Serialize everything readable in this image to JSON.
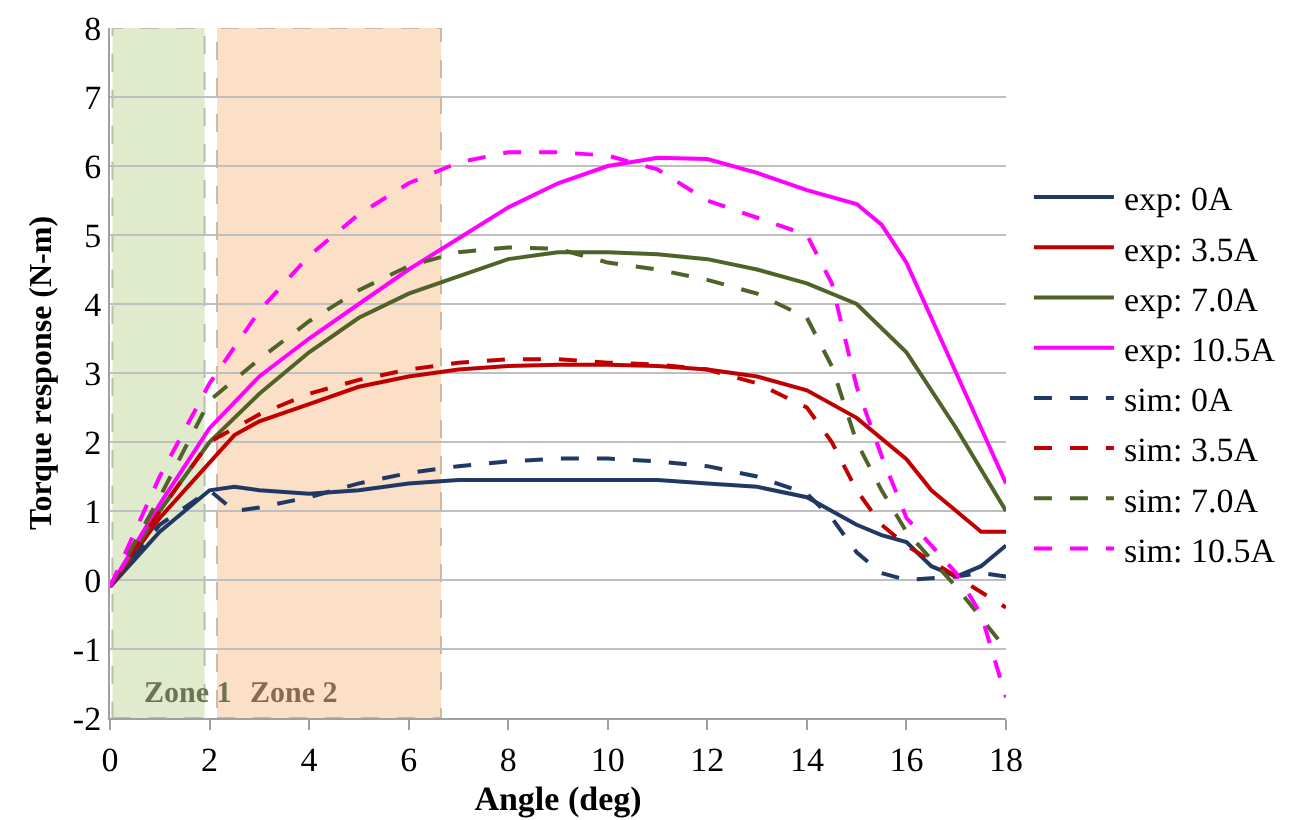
{
  "chart_data": {
    "type": "line",
    "xlabel": "Angle (deg)",
    "ylabel": "Torque response (N-m)",
    "xlim": [
      0,
      18
    ],
    "xticks": [
      0,
      2,
      4,
      6,
      8,
      10,
      12,
      14,
      16,
      18
    ],
    "ylim": [
      -2,
      8
    ],
    "yticks": [
      -2,
      -1,
      0,
      1,
      2,
      3,
      4,
      5,
      6,
      7,
      8
    ],
    "grid": "y",
    "legend": "right",
    "marker": "none",
    "bands": [
      {
        "axis": "x",
        "from": 0.05,
        "to": 1.9,
        "label": "Zone 1",
        "color": "#c3d69b"
      },
      {
        "axis": "x",
        "from": 2.15,
        "to": 6.65,
        "label": "Zone 2",
        "color": "#fac090"
      }
    ],
    "series": [
      {
        "name": "exp: 0A",
        "color": "#1f3864",
        "line_style": "solid",
        "x": [
          0,
          0.5,
          1,
          1.5,
          2,
          2.5,
          3,
          4,
          5,
          6,
          7,
          8,
          9,
          10,
          11,
          12,
          13,
          14,
          14.5,
          15,
          15.5,
          16,
          16.5,
          17,
          17.5,
          18
        ],
        "values": [
          -0.1,
          0.3,
          0.7,
          1.0,
          1.3,
          1.35,
          1.3,
          1.25,
          1.3,
          1.4,
          1.45,
          1.45,
          1.45,
          1.45,
          1.45,
          1.4,
          1.35,
          1.2,
          1.0,
          0.8,
          0.65,
          0.55,
          0.2,
          0.05,
          0.2,
          0.5
        ]
      },
      {
        "name": "exp: 3.5A",
        "color": "#c00000",
        "line_style": "solid",
        "x": [
          0,
          1,
          2,
          2.5,
          3,
          4,
          5,
          6,
          7,
          8,
          9,
          10,
          11,
          12,
          13,
          14,
          15,
          16,
          16.5,
          17,
          17.5,
          18
        ],
        "values": [
          -0.1,
          0.9,
          1.7,
          2.1,
          2.3,
          2.55,
          2.8,
          2.95,
          3.05,
          3.1,
          3.12,
          3.12,
          3.1,
          3.05,
          2.95,
          2.75,
          2.35,
          1.75,
          1.3,
          1.0,
          0.7,
          0.7
        ]
      },
      {
        "name": "exp: 7.0A",
        "color": "#4f6228",
        "line_style": "solid",
        "x": [
          0,
          1,
          2,
          3,
          4,
          5,
          6,
          7,
          8,
          9,
          10,
          11,
          12,
          13,
          14,
          15,
          16,
          17,
          18
        ],
        "values": [
          -0.1,
          1.0,
          2.0,
          2.7,
          3.3,
          3.8,
          4.15,
          4.4,
          4.65,
          4.75,
          4.75,
          4.72,
          4.65,
          4.5,
          4.3,
          4.0,
          3.3,
          2.2,
          1.0
        ]
      },
      {
        "name": "exp: 10.5A",
        "color": "#ff00ff",
        "line_style": "solid",
        "x": [
          0,
          1,
          2,
          3,
          4,
          5,
          6,
          7,
          8,
          9,
          10,
          11,
          12,
          13,
          14,
          15,
          15.5,
          16,
          17,
          18
        ],
        "values": [
          -0.1,
          1.1,
          2.2,
          2.95,
          3.5,
          4.0,
          4.5,
          4.95,
          5.4,
          5.75,
          6.0,
          6.12,
          6.1,
          5.9,
          5.65,
          5.45,
          5.15,
          4.6,
          3.0,
          1.4
        ]
      },
      {
        "name": "sim: 0A",
        "color": "#1f3864",
        "line_style": "dashed",
        "x": [
          0,
          1,
          2,
          2.5,
          3,
          4,
          5,
          6,
          7,
          8,
          9,
          10,
          11,
          12,
          13,
          14,
          14.5,
          15,
          15.5,
          16,
          17,
          17.5,
          18
        ],
        "values": [
          -0.1,
          0.8,
          1.3,
          1.0,
          1.05,
          1.2,
          1.4,
          1.55,
          1.65,
          1.72,
          1.76,
          1.76,
          1.72,
          1.65,
          1.5,
          1.25,
          0.9,
          0.4,
          0.1,
          0.0,
          0.05,
          0.1,
          0.05
        ]
      },
      {
        "name": "sim: 3.5A",
        "color": "#c00000",
        "line_style": "dashed",
        "x": [
          0,
          1,
          2,
          3,
          4,
          5,
          6,
          7,
          8,
          9,
          10,
          11,
          12,
          13,
          14,
          14.5,
          15,
          15.5,
          16,
          17,
          18
        ],
        "values": [
          -0.1,
          1.0,
          2.0,
          2.4,
          2.7,
          2.9,
          3.05,
          3.15,
          3.2,
          3.2,
          3.15,
          3.12,
          3.05,
          2.85,
          2.5,
          2.0,
          1.3,
          0.8,
          0.5,
          0.05,
          -0.4
        ]
      },
      {
        "name": "sim: 7.0A",
        "color": "#4f6228",
        "line_style": "dashed",
        "x": [
          0,
          1,
          2,
          3,
          4,
          5,
          6,
          7,
          8,
          9,
          10,
          11,
          12,
          13,
          14,
          14.5,
          15,
          15.5,
          16,
          17,
          18
        ],
        "values": [
          -0.1,
          1.2,
          2.6,
          3.2,
          3.75,
          4.2,
          4.55,
          4.75,
          4.82,
          4.8,
          4.6,
          4.5,
          4.35,
          4.15,
          3.8,
          3.1,
          2.0,
          1.3,
          0.7,
          -0.1,
          -1.0
        ]
      },
      {
        "name": "sim: 10.5A",
        "color": "#ff00ff",
        "line_style": "dashed",
        "x": [
          0,
          1,
          2,
          3,
          4,
          5,
          6,
          7,
          8,
          9,
          10,
          11,
          12,
          13,
          14,
          14.5,
          15,
          15.5,
          16,
          17,
          17.5,
          18
        ],
        "values": [
          -0.1,
          1.5,
          2.85,
          3.9,
          4.7,
          5.3,
          5.75,
          6.05,
          6.2,
          6.2,
          6.15,
          5.95,
          5.5,
          5.25,
          5.0,
          4.3,
          2.8,
          1.8,
          0.9,
          0.1,
          -0.5,
          -1.7
        ]
      }
    ]
  }
}
